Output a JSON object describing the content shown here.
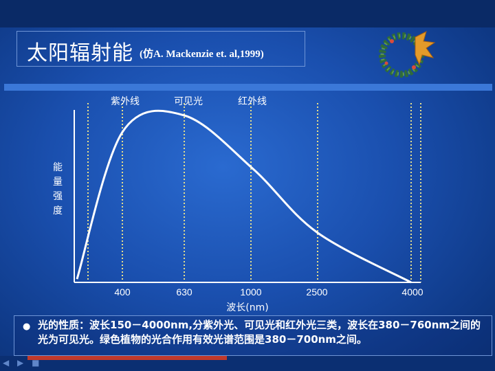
{
  "slide": {
    "title": "太阳辐射能",
    "subtitle": "(仿A. Mackenzie et. al,1999)",
    "note": "光的性质：波长150－4000nm,分紫外光、可见光和红外光三类，波长在380－760nm之间的光为可见光。绿色植物的光合作用有效光谱范围是380－700nm之间。",
    "colors": {
      "curve": "#ffffff",
      "guide_lines": "#e8e08a",
      "text": "#ffffff",
      "title_border": "#6f95d6",
      "band_bar": "#3b78d8"
    },
    "icons": {
      "wreath": "holly-wreath-icon",
      "bullet": "bullet-dot-icon"
    }
  },
  "chart_data": {
    "type": "line",
    "title": "",
    "xlabel": "波长(nm)",
    "ylabel": "能量强度",
    "ylabel_chars": [
      "能",
      "量",
      "强",
      "度"
    ],
    "x_ticks": [
      "400",
      "630",
      "1000",
      "2500",
      "4000"
    ],
    "region_labels": [
      "紫外线",
      "可见光",
      "红外线"
    ],
    "guide_line_count": 7,
    "grid": false,
    "series": [
      {
        "x": [
          150,
          400,
          630,
          1000,
          2500,
          4000
        ],
        "y": [
          2,
          90,
          100,
          68,
          30,
          0
        ]
      }
    ]
  }
}
